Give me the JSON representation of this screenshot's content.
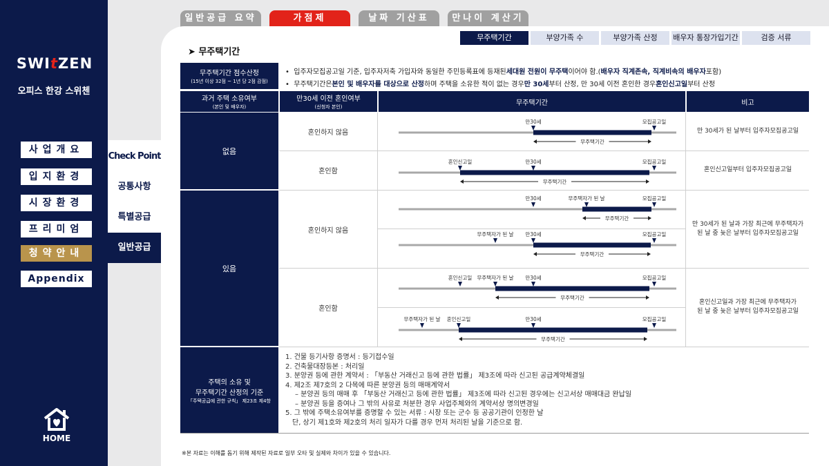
{
  "brand": {
    "logo_a": "SWI",
    "logo_t": "t",
    "logo_b": "ZEN",
    "subtitle": "오피스 한강 스위첸"
  },
  "sidebar": {
    "items": [
      {
        "label": "사업개요"
      },
      {
        "label": "입지환경"
      },
      {
        "label": "시장환경"
      },
      {
        "label": "프리미엄"
      },
      {
        "label": "청약안내"
      },
      {
        "label": "Appendix"
      }
    ],
    "active": "청약안내",
    "home_label": "HOME"
  },
  "subnav": {
    "items": [
      {
        "label": "Check Point"
      },
      {
        "label": "공통사항"
      },
      {
        "label": "특별공급"
      },
      {
        "label": "일반공급"
      }
    ],
    "active": "일반공급"
  },
  "top_tabs": [
    {
      "label": "일반공급 요약"
    },
    {
      "label": "가점제"
    },
    {
      "label": "날짜 기산표"
    },
    {
      "label": "만나이 계산기"
    }
  ],
  "sub_tabs": [
    {
      "label": "무주택기간"
    },
    {
      "label": "부양가족 수"
    },
    {
      "label": "부양가족 산정"
    },
    {
      "label": "배우자 통장가입기간"
    },
    {
      "label": "검증 서류"
    }
  ],
  "section_title": "무주택기간",
  "score_header": {
    "title": "무주택기간 점수산정",
    "sub": "(15년 이상 32점 ~ 1년 당 2점 감점)"
  },
  "intro": {
    "line1": {
      "p1": "입주자모집공고일 기준, 입주자저축 가입자와 동일한 주민등록표에 등재된 ",
      "b1": "세대원 전원이 무주택",
      "p2": "이어야 함.(",
      "b2": "배우자 직계존속, 직계비속의 배우자",
      "p3": " 포함)"
    },
    "line2": {
      "p1": "무주택기간은 ",
      "b1": "본인 및 배우자를 대상으로 산정",
      "p2": "하며 주택을 소유한 적이 없는 경우 ",
      "b2": "만 30세",
      "p3": "부터 산정, 만 30세 이전 혼인한 경우 ",
      "b3": "혼인신고일",
      "p4": "부터 산정"
    }
  },
  "table": {
    "col1": {
      "title": "과거 주택 소유여부",
      "sub": "(본인 및 배우자)"
    },
    "col2": {
      "title": "만30세 이전 혼인여부",
      "sub": "(신청자 본인)"
    },
    "col3": "무주택기간",
    "col4": "비고",
    "none_label": "없음",
    "has_label": "있음",
    "not_married": "혼인하지 않음",
    "married": "혼인함",
    "notes": {
      "n1": "만 30세가 된 날부터 입주자모집공고일",
      "n2": "혼인신고일부터 입주자모집공고일",
      "n3a": "만 30세가 된 날과 가장 최근에 무주택자가",
      "n3b": "된 날 중 늦은 날부터 입주자모집공고일",
      "n4a": "혼인신고일과 가장 최근에 무주택자가",
      "n4b": "된 날 중 늦은 날부터 입주자모집공고일"
    },
    "timeline_labels": {
      "age30": "만30세",
      "notice": "모집공고일",
      "marriage": "혼인신고일",
      "homeless": "무주택자가 된 날",
      "period": "무주택기간"
    }
  },
  "criteria": {
    "title1": "주택의 소유 및",
    "title2": "무주택기간 산정의 기준",
    "sub": "「주택공급에 관한 규칙」 제23조 제4항"
  },
  "docs": [
    "1. 건물 등기사항 증명서 : 등기접수일",
    "2. 건축물대장등본 : 처리일",
    "3. 분양권 등에 관한 계약서 : 「부동산 거래신고 등에 관한 법률」 제3조에 따라 신고된 공급계약체결일",
    "4. 제2조 제7호의 2 다목에 따른 분양권 등의 매매계약서",
    "   – 분양권 등의 매매 후 「부동산 거래신고 등에 관한 법률」 제3조에 따라 신고된 경우에는 신고서상 매매대금 완납일",
    "   – 분양권 등을 증여나 그 밖의 사유로 처분한 경우 사업주체와의 계약서상 명의변경일",
    "5. 그 밖에 주택소유여부를 증명할 수 있는 서류 : 시장 또는 군수 등 공공기관이 인정한 날",
    "   단, 상기 제1호와 제2호의 처리 일자가 다를 경우 먼저 처리된 날을 기준으로 함."
  ],
  "footnote": "※본 자료는 이해를 돕기 위해 제작된 자료로 일부 오타 및 실제와 차이가 있을 수 있습니다.",
  "colors": {
    "navy": "#0c1a4a",
    "red": "#e2231a",
    "gold": "#b9944c",
    "gray_tab": "#a0a0a0",
    "pill": "#dde2ef"
  }
}
